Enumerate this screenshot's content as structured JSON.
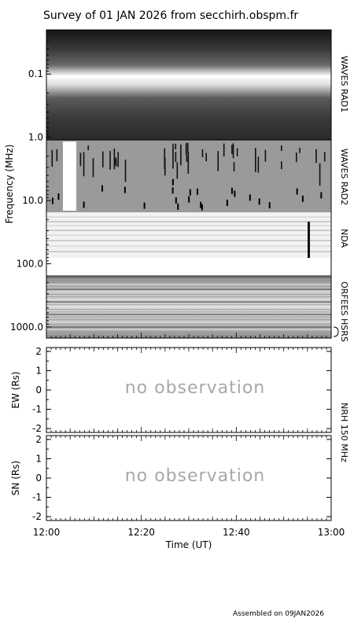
{
  "title": "Survey of 01 JAN 2026 from secchirh.obspm.fr",
  "footer": "Assembled on 09JAN2026",
  "chart_data": [
    {
      "type": "heatmap",
      "panel": "dynamic-spectrum",
      "ylabel": "Frequency (MHz)",
      "y_scale": "log",
      "y_inverted": true,
      "ylim": [
        0.02,
        1500
      ],
      "yticks": [
        0.1,
        1.0,
        10.0,
        100.0,
        1000.0
      ],
      "ytick_labels": [
        "0.1",
        "1.0",
        "10.0",
        "100.0",
        "1000.0"
      ],
      "bands": [
        {
          "name": "WAVES RAD1",
          "range_mhz": [
            0.02,
            1.0
          ]
        },
        {
          "name": "WAVES RAD2",
          "range_mhz": [
            1.0,
            13.8
          ]
        },
        {
          "name": "NDA",
          "range_mhz": [
            13.8,
            80
          ]
        },
        {
          "name": "ORFEES",
          "range_mhz": [
            144,
            1000
          ]
        },
        {
          "name": "HSRS",
          "range_mhz": [
            1000,
            1500
          ]
        }
      ]
    },
    {
      "type": "scatter",
      "panel": "nrh-ew",
      "ylabel": "EW (Rs)",
      "ylim": [
        -2.2,
        2.2
      ],
      "yticks": [
        2,
        1,
        0,
        -1,
        -2
      ],
      "annotation": "no observation",
      "x": [],
      "y": []
    },
    {
      "type": "scatter",
      "panel": "nrh-sn",
      "ylabel": "SN (Rs)",
      "ylim": [
        -2.2,
        2.2
      ],
      "yticks": [
        2,
        1,
        0,
        -1,
        -2
      ],
      "annotation": "no observation",
      "x": [],
      "y": []
    }
  ],
  "shared_x": {
    "xlabel": "Time (UT)",
    "xlim": [
      "12:00",
      "13:00"
    ],
    "xticks": [
      "12:00",
      "12:20",
      "12:40",
      "13:00"
    ]
  },
  "nrh_label": "NRH 150 MHz"
}
